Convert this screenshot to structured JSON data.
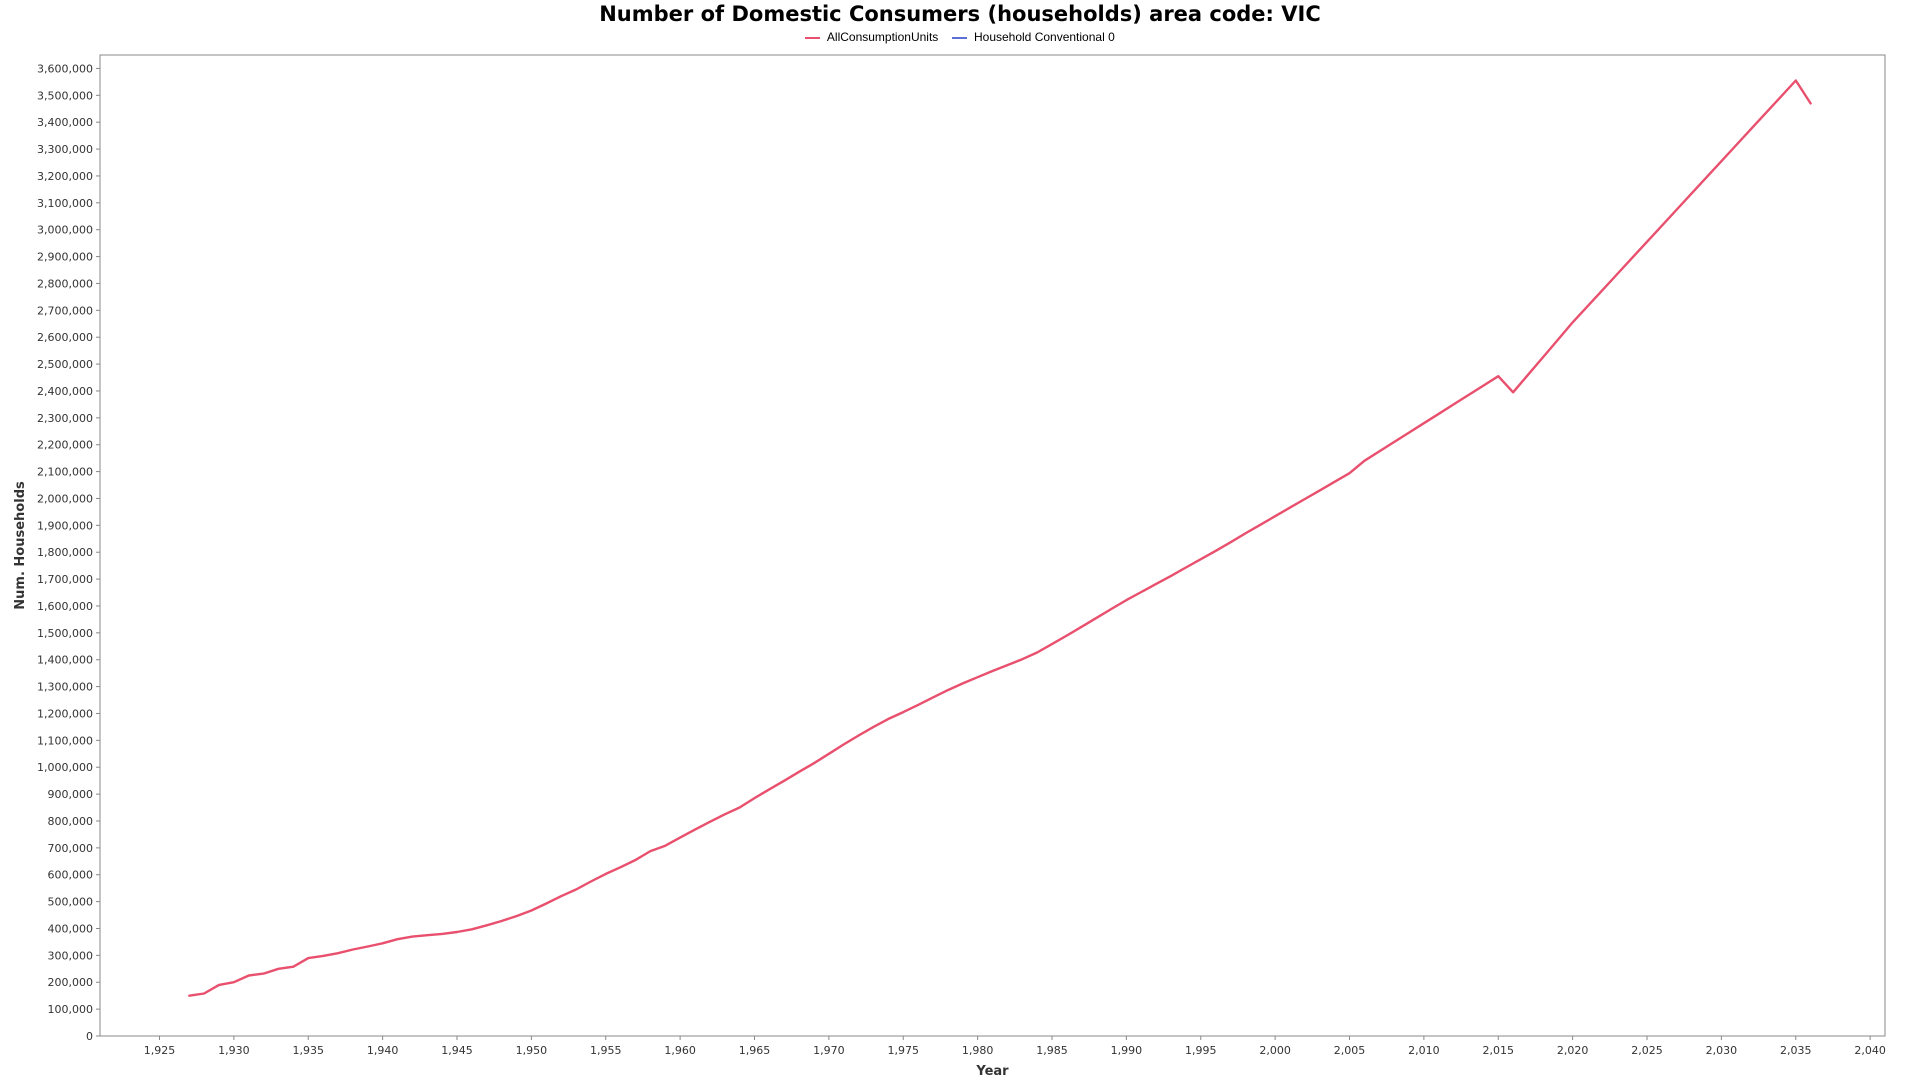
{
  "chart_data": {
    "type": "line",
    "title": "Number of Domestic Consumers (households) area code: VIC",
    "xlabel": "Year",
    "ylabel": "Num. Households",
    "xlim": [
      1921,
      2041
    ],
    "ylim": [
      0,
      3650000
    ],
    "x_ticks": [
      1925,
      1930,
      1935,
      1940,
      1945,
      1950,
      1955,
      1960,
      1965,
      1970,
      1975,
      1980,
      1985,
      1990,
      1995,
      2000,
      2005,
      2010,
      2015,
      2020,
      2025,
      2030,
      2035,
      2040
    ],
    "x_tick_labels": [
      "1,925",
      "1,930",
      "1,935",
      "1,940",
      "1,945",
      "1,950",
      "1,955",
      "1,960",
      "1,965",
      "1,970",
      "1,975",
      "1,980",
      "1,985",
      "1,990",
      "1,995",
      "2,000",
      "2,005",
      "2,010",
      "2,015",
      "2,020",
      "2,025",
      "2,030",
      "2,035",
      "2,040"
    ],
    "y_ticks": [
      0,
      100000,
      200000,
      300000,
      400000,
      500000,
      600000,
      700000,
      800000,
      900000,
      1000000,
      1100000,
      1200000,
      1300000,
      1400000,
      1500000,
      1600000,
      1700000,
      1800000,
      1900000,
      2000000,
      2100000,
      2200000,
      2300000,
      2400000,
      2500000,
      2600000,
      2700000,
      2800000,
      2900000,
      3000000,
      3100000,
      3200000,
      3300000,
      3400000,
      3500000,
      3600000
    ],
    "y_tick_labels": [
      "0",
      "100,000",
      "200,000",
      "300,000",
      "400,000",
      "500,000",
      "600,000",
      "700,000",
      "800,000",
      "900,000",
      "1,000,000",
      "1,100,000",
      "1,200,000",
      "1,300,000",
      "1,400,000",
      "1,500,000",
      "1,600,000",
      "1,700,000",
      "1,800,000",
      "1,900,000",
      "2,000,000",
      "2,100,000",
      "2,200,000",
      "2,300,000",
      "2,400,000",
      "2,500,000",
      "2,600,000",
      "2,700,000",
      "2,800,000",
      "2,900,000",
      "3,000,000",
      "3,100,000",
      "3,200,000",
      "3,300,000",
      "3,400,000",
      "3,500,000",
      "3,600,000"
    ],
    "grid": false,
    "legend_position": "top",
    "series": [
      {
        "name": "AllConsumptionUnits",
        "color": "#e8506e",
        "x": [
          1927,
          1928,
          1929,
          1930,
          1931,
          1932,
          1933,
          1934,
          1935,
          1936,
          1937,
          1938,
          1939,
          1940,
          1941,
          1942,
          1943,
          1944,
          1945,
          1946,
          1947,
          1948,
          1949,
          1950,
          1951,
          1952,
          1953,
          1954,
          1955,
          1956,
          1957,
          1958,
          1959,
          1960,
          1961,
          1962,
          1963,
          1964,
          1965,
          1966,
          1967,
          1968,
          1969,
          1970,
          1971,
          1972,
          1973,
          1974,
          1975,
          1976,
          1977,
          1978,
          1979,
          1980,
          1981,
          1982,
          1983,
          1984,
          1985,
          1986,
          1987,
          1988,
          1989,
          1990,
          1991,
          1992,
          1993,
          1994,
          1995,
          1996,
          1997,
          1998,
          1999,
          2000,
          2001,
          2002,
          2003,
          2004,
          2005,
          2006,
          2007,
          2008,
          2009,
          2010,
          2011,
          2012,
          2013,
          2014,
          2015,
          2016,
          2017,
          2018,
          2019,
          2020,
          2021,
          2022,
          2023,
          2024,
          2025,
          2026,
          2027,
          2028,
          2029,
          2030,
          2031,
          2032,
          2033,
          2034,
          2035,
          2036
        ],
        "values": [
          150000,
          158000,
          190000,
          200000,
          225000,
          232000,
          250000,
          258000,
          290000,
          298000,
          308000,
          322000,
          333000,
          345000,
          360000,
          370000,
          375000,
          380000,
          387000,
          397000,
          412000,
          428000,
          446000,
          467000,
          493000,
          520000,
          545000,
          575000,
          603000,
          628000,
          655000,
          688000,
          708000,
          738000,
          768000,
          797000,
          825000,
          850000,
          885000,
          918000,
          950000,
          983000,
          1015000,
          1050000,
          1085000,
          1118000,
          1150000,
          1180000,
          1205000,
          1232000,
          1260000,
          1287000,
          1312000,
          1335000,
          1358000,
          1380000,
          1402000,
          1427000,
          1458000,
          1490000,
          1523000,
          1556000,
          1589000,
          1622000,
          1652000,
          1682000,
          1712000,
          1743000,
          1774000,
          1805000,
          1837000,
          1870000,
          1902000,
          1934000,
          1966000,
          1998000,
          2030000,
          2062000,
          2094000,
          2140000,
          2175000,
          2210000,
          2245000,
          2280000,
          2315000,
          2350000,
          2385000,
          2420000,
          2455000,
          2395000,
          2460000,
          2525000,
          2590000,
          2655000,
          2715000,
          2775000,
          2835000,
          2895000,
          2955000,
          3015000,
          3075000,
          3135000,
          3195000,
          3255000,
          3315000,
          3375000,
          3435000,
          3495000,
          3555000,
          3470000
        ]
      },
      {
        "name": "Household Conventional 0",
        "color": "#5b6fd6",
        "x": [],
        "values": []
      }
    ]
  }
}
